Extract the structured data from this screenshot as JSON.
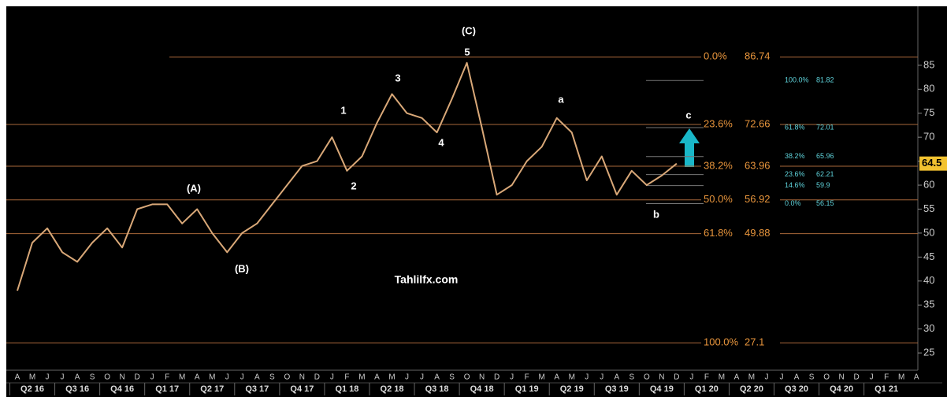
{
  "chart_data": {
    "type": "line",
    "categories": [
      "A",
      "M",
      "J",
      "J",
      "A",
      "S",
      "O",
      "N",
      "D",
      "J",
      "F",
      "M",
      "A",
      "M",
      "J",
      "J",
      "A",
      "S",
      "O",
      "N",
      "D",
      "J",
      "F",
      "M",
      "A",
      "M",
      "J",
      "J",
      "A",
      "S",
      "O",
      "N",
      "D",
      "J",
      "F",
      "M",
      "A",
      "M",
      "J",
      "J",
      "A",
      "S",
      "O",
      "N",
      "D",
      "J",
      "F",
      "M",
      "A",
      "M",
      "J",
      "J",
      "A",
      "S",
      "O",
      "N",
      "D",
      "J",
      "F",
      "M",
      "A"
    ],
    "quarters": [
      "Q2 16",
      "Q3 16",
      "Q4 16",
      "Q1 17",
      "Q2 17",
      "Q3 17",
      "Q4 17",
      "Q1 18",
      "Q2 18",
      "Q3 18",
      "Q4 18",
      "Q1 19",
      "Q2 19",
      "Q3 19",
      "Q4 19",
      "Q1 20",
      "Q2 20",
      "Q3 20",
      "Q4 20",
      "Q1 21"
    ],
    "values": [
      38,
      48,
      51,
      46,
      44,
      48,
      51,
      47,
      55,
      56,
      56,
      52,
      55,
      50,
      46,
      50,
      52,
      56,
      60,
      64,
      65,
      70,
      63,
      66,
      73,
      79,
      75,
      74,
      71,
      78,
      85.5,
      72,
      58,
      60,
      65,
      68,
      74,
      71,
      61,
      66,
      58,
      63,
      60,
      62,
      64.5,
      null,
      null,
      null,
      null,
      null,
      null,
      null,
      null,
      null,
      null,
      null,
      null,
      null,
      null,
      null,
      null
    ],
    "color": "#d9a878",
    "last_price": 64.5,
    "ylim": [
      21.4,
      97.3
    ],
    "yticks": [
      25,
      30,
      35,
      40,
      45,
      50,
      55,
      60,
      65,
      70,
      75,
      80,
      85
    ],
    "fib_levels": [
      {
        "label": "0.0%",
        "value": 86.74
      },
      {
        "label": "23.6%",
        "value": 72.66
      },
      {
        "label": "38.2%",
        "value": 63.96
      },
      {
        "label": "50.0%",
        "value": 56.92
      },
      {
        "label": "61.8%",
        "value": 49.88
      },
      {
        "label": "100.0%",
        "value": 27.1
      }
    ],
    "projection_levels": [
      {
        "label": "100.0%",
        "value": 81.82
      },
      {
        "label": "61.8%",
        "value": 72.01
      },
      {
        "label": "38.2%",
        "value": 65.96
      },
      {
        "label": "23.6%",
        "value": 62.21
      },
      {
        "label": "14.6%",
        "value": 59.9
      },
      {
        "label": "0.0%",
        "value": 56.15
      }
    ],
    "annotations": [
      "(C)",
      "5",
      "3",
      "1",
      "4",
      "2",
      "(A)",
      "(B)",
      "a",
      "b",
      "c",
      "Tahlilfx.com"
    ]
  }
}
